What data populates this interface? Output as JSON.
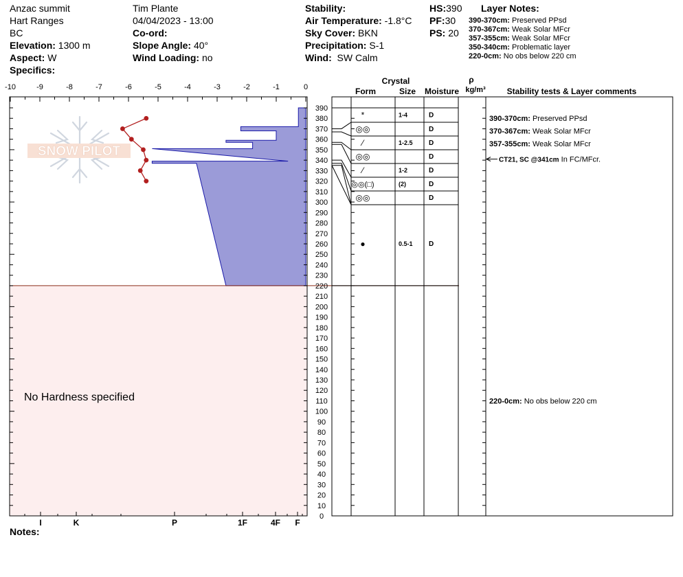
{
  "header": {
    "location": "Anzac summit",
    "range": "Hart Ranges",
    "state": "BC",
    "elevation_label": "Elevation:",
    "elevation": "1300 m",
    "aspect_label": "Aspect:",
    "aspect": "W",
    "specifics_label": "Specifics:",
    "observer": "Tim Plante",
    "datetime": "04/04/2023 - 13:00",
    "coord_label": "Co-ord:",
    "slope_label": "Slope Angle:",
    "slope": "40°",
    "wind_loading_label": "Wind Loading:",
    "wind_loading": "no",
    "stability_label": "Stability:",
    "air_temp_label": "Air Temperature:",
    "air_temp": "-1.8°C",
    "sky_label": "Sky Cover:",
    "sky": "BKN",
    "precip_label": "Precipitation:",
    "precip": "S-1",
    "wind_label": "Wind:",
    "wind": "SW Calm",
    "hs_label": "HS:",
    "hs": "390",
    "pf_label": "PF:",
    "pf": "30",
    "ps_label": "PS:",
    "ps": "20",
    "layer_notes_title": "Layer Notes:"
  },
  "layer_notes": [
    {
      "range": "390-370cm:",
      "text": "Preserved PPsd"
    },
    {
      "range": "370-367cm:",
      "text": "Weak Solar MFcr"
    },
    {
      "range": "357-355cm:",
      "text": "Weak Solar MFcr"
    },
    {
      "range": "350-340cm:",
      "text": "Problematic layer"
    },
    {
      "range": "220-0cm:",
      "text": "No obs below 220 cm"
    }
  ],
  "columns": {
    "crystal": "Crystal",
    "form": "Form",
    "size": "Size",
    "moisture": "Moisture",
    "rho": "ρ",
    "density_unit": "kg/m³",
    "stability": "Stability tests & Layer comments"
  },
  "logo_text": "SNOW PILOT",
  "no_hardness": "No Hardness specified",
  "notes_label": "Notes:",
  "chart_data": {
    "type": "snow-profile",
    "temperature_axis": {
      "ticks": [
        "-10",
        "-9",
        "-8",
        "-7",
        "-6",
        "-5",
        "-4",
        "-3",
        "-2",
        "-1",
        "0"
      ],
      "range": [
        -10,
        0
      ]
    },
    "height_axis": {
      "range": [
        0,
        390
      ],
      "label_step": 10
    },
    "hardness_axis": {
      "labels": [
        "I",
        "K",
        "P",
        "1F",
        "4F",
        "F"
      ]
    },
    "temperature_profile": [
      {
        "h": 380,
        "t": -5.4
      },
      {
        "h": 370,
        "t": -6.2
      },
      {
        "h": 360,
        "t": -5.9
      },
      {
        "h": 350,
        "t": -5.5
      },
      {
        "h": 340,
        "t": -5.4
      },
      {
        "h": 330,
        "t": -5.6
      },
      {
        "h": 320,
        "t": -5.4
      }
    ],
    "hardness_profile": [
      {
        "h": 390,
        "x": -0.25
      },
      {
        "h": 372,
        "x": -0.25
      },
      {
        "h": 372,
        "x": -2.2
      },
      {
        "h": 368,
        "x": -2.2
      },
      {
        "h": 368,
        "x": -1.0
      },
      {
        "h": 359,
        "x": -1.0
      },
      {
        "h": 359,
        "x": -2.7
      },
      {
        "h": 357,
        "x": -2.7
      },
      {
        "h": 357,
        "x": -1.8
      },
      {
        "h": 351,
        "x": -1.8
      },
      {
        "h": 351,
        "x": -5.2
      },
      {
        "h": 339,
        "x": -0.6
      },
      {
        "h": 339,
        "x": -5.2
      },
      {
        "h": 337,
        "x": -5.2
      },
      {
        "h": 337,
        "x": -3.7
      },
      {
        "h": 220,
        "x": -2.7
      },
      {
        "h": 220,
        "x": 0
      }
    ],
    "no_obs_below": 220,
    "layers": [
      {
        "top": 390,
        "bottom": 370,
        "form": "*",
        "size": "1-4",
        "moisture": "D"
      },
      {
        "top": 370,
        "bottom": 367,
        "form": "◎◎",
        "size": "",
        "moisture": "D"
      },
      {
        "top": 367,
        "bottom": 357,
        "form": "⁄",
        "size": "1-2.5",
        "moisture": "D"
      },
      {
        "top": 357,
        "bottom": 355,
        "form": "◎◎",
        "size": "",
        "moisture": "D"
      },
      {
        "top": 355,
        "bottom": 340,
        "form": "⁄",
        "size": "1-2",
        "moisture": "D"
      },
      {
        "top": 340,
        "bottom": 337,
        "form": "◎◎(□)",
        "size": "(2)",
        "moisture": "D"
      },
      {
        "top": 337,
        "bottom": 335,
        "form": "◎◎",
        "size": "",
        "moisture": "D"
      },
      {
        "top": 335,
        "bottom": 220,
        "form": "●",
        "size": "0.5-1",
        "moisture": "D"
      }
    ],
    "comments": [
      {
        "h": 380,
        "range": "390-370cm:",
        "text": "Preserved PPsd"
      },
      {
        "h": 368,
        "range": "370-367cm:",
        "text": "Weak Solar MFcr"
      },
      {
        "h": 341,
        "range": "CT21, SC @341cm",
        "text": "In FC/MFcr.",
        "arrow": true
      },
      {
        "h": 356,
        "range": "357-355cm:",
        "text": "Weak Solar MFcr"
      },
      {
        "h": 110,
        "range": "220-0cm:",
        "text": "No obs below 220 cm"
      }
    ]
  }
}
